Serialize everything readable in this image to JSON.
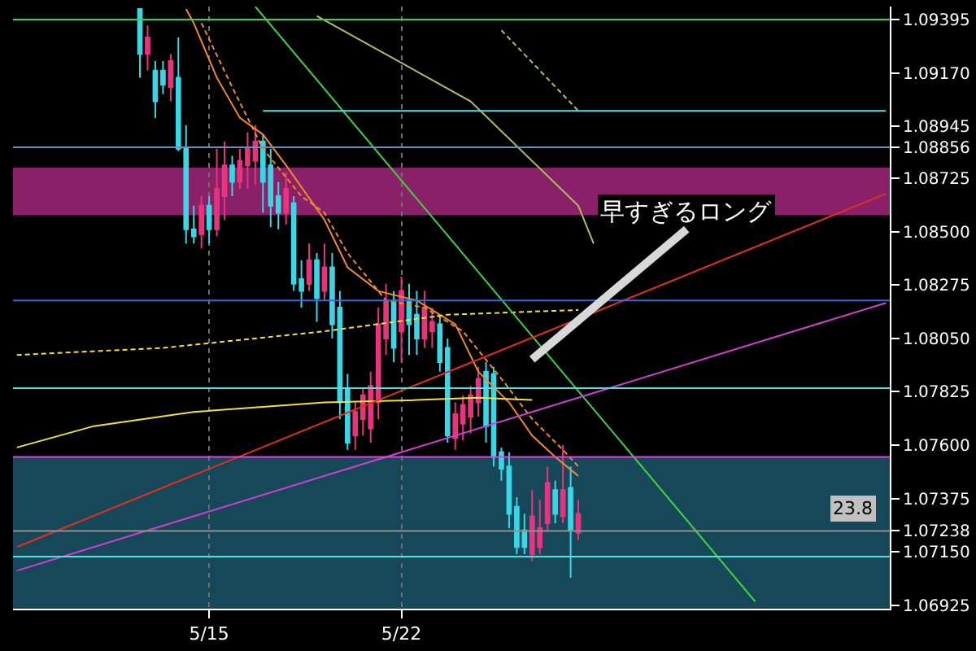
{
  "chart_data": {
    "type": "candlestick",
    "categories": [
      null,
      null,
      null,
      null,
      null,
      null,
      null,
      null,
      null,
      null,
      null,
      null,
      null,
      null,
      null,
      null,
      null,
      null,
      null,
      null,
      null,
      null,
      null,
      null,
      null,
      "5/15",
      null,
      null,
      null,
      null,
      null,
      null,
      null,
      null,
      null,
      null,
      null,
      null,
      null,
      null,
      null,
      null,
      null,
      null,
      null,
      null,
      null,
      null,
      null,
      null,
      "5/22",
      null,
      null,
      null,
      null,
      null,
      null,
      null,
      null,
      null,
      null,
      null,
      null,
      null,
      null,
      null,
      null,
      null,
      null,
      null,
      null,
      null,
      null,
      null,
      null,
      null,
      null,
      null,
      null,
      null,
      null,
      null,
      null,
      null,
      null,
      null,
      null,
      null,
      null,
      null,
      null,
      null,
      null,
      null,
      null,
      null,
      null,
      null,
      null,
      null,
      null,
      null,
      null,
      null,
      null,
      null,
      null,
      null,
      null,
      null,
      null,
      null,
      null,
      null
    ],
    "ohlc": [
      null,
      null,
      null,
      null,
      null,
      null,
      null,
      null,
      null,
      null,
      null,
      null,
      null,
      null,
      null,
      null,
      [
        1.0944,
        1.0944,
        1.0915,
        1.0925
      ],
      [
        1.0925,
        1.0937,
        1.0918,
        1.0932
      ],
      [
        1.0918,
        1.0922,
        1.0898,
        1.0905
      ],
      [
        1.0918,
        1.0922,
        1.0908,
        1.0912
      ],
      [
        1.0911,
        1.0925,
        1.0905,
        1.0922
      ],
      [
        1.0915,
        1.0932,
        1.0884,
        1.0885
      ],
      [
        1.0885,
        1.0895,
        1.0845,
        1.0851
      ],
      [
        1.0851,
        1.0861,
        1.0845,
        1.0848
      ],
      [
        1.0849,
        1.0865,
        1.0843,
        1.0861
      ],
      [
        1.0861,
        1.0865,
        1.0845,
        1.0851
      ],
      [
        1.0851,
        1.0885,
        1.0848,
        1.0868
      ],
      [
        1.0865,
        1.0888,
        1.0855,
        1.0878
      ],
      [
        1.0878,
        1.0882,
        1.0865,
        1.0871
      ],
      [
        1.0871,
        1.0885,
        1.0868,
        1.088
      ],
      [
        1.0878,
        1.0892,
        1.0868,
        1.0885
      ],
      [
        1.088,
        1.0895,
        1.087,
        1.0888
      ],
      [
        1.0888,
        1.0891,
        1.0858,
        1.0871
      ],
      [
        1.0878,
        1.0885,
        1.0852,
        1.0861
      ],
      [
        1.0865,
        1.0871,
        1.0851,
        1.0858
      ],
      [
        1.0858,
        1.0875,
        1.0853,
        1.0868
      ],
      [
        1.0862,
        1.0865,
        1.0825,
        1.0828
      ],
      [
        1.083,
        1.0838,
        1.0818,
        1.0825
      ],
      [
        1.0828,
        1.0845,
        1.0825,
        1.0838
      ],
      [
        1.0838,
        1.0841,
        1.0812,
        1.0822
      ],
      [
        1.0825,
        1.0845,
        1.0821,
        1.0835
      ],
      [
        1.0835,
        1.0841,
        1.0805,
        1.0811
      ],
      [
        1.0818,
        1.0825,
        1.0771,
        1.0778
      ],
      [
        1.0784,
        1.079,
        1.0758,
        1.0761
      ],
      [
        1.0764,
        1.0778,
        1.0758,
        1.0774
      ],
      [
        1.0771,
        1.0784,
        1.0764,
        1.0781
      ],
      [
        1.0767,
        1.0791,
        1.0761,
        1.0785
      ],
      [
        1.0778,
        1.0818,
        1.0771,
        1.0811
      ],
      [
        1.0805,
        1.0828,
        1.0798,
        1.0821
      ],
      [
        1.0821,
        1.0825,
        1.0795,
        1.0801
      ],
      [
        1.0808,
        1.0831,
        1.0795,
        1.0825
      ],
      [
        1.0821,
        1.0828,
        1.0798,
        1.0811
      ],
      [
        1.0815,
        1.0825,
        1.0798,
        1.0805
      ],
      [
        1.0805,
        1.0825,
        1.0801,
        1.0818
      ],
      [
        1.0808,
        1.0818,
        1.0801,
        1.0812
      ],
      [
        1.0811,
        1.0815,
        1.0791,
        1.0795
      ],
      [
        1.0801,
        1.0805,
        1.0761,
        1.0764
      ],
      [
        1.0763,
        1.0778,
        1.0758,
        1.0773
      ],
      [
        1.0769,
        1.0781,
        1.0762,
        1.0777
      ],
      [
        1.0772,
        1.0785,
        1.0765,
        1.0781
      ],
      [
        1.0778,
        1.0793,
        1.0772,
        1.0788
      ],
      [
        1.0791,
        1.0795,
        1.0761,
        1.0768
      ],
      [
        1.079,
        1.0793,
        1.0751,
        1.0755
      ],
      [
        1.0757,
        1.0759,
        1.0745,
        1.075
      ],
      [
        1.0751,
        1.0757,
        1.0725,
        1.0731
      ],
      [
        1.0734,
        1.0738,
        1.0714,
        1.0717
      ],
      [
        1.0724,
        1.0731,
        1.0714,
        1.0717
      ],
      [
        1.0714,
        1.0741,
        1.0711,
        1.073
      ],
      [
        1.0717,
        1.0737,
        1.0714,
        1.0725
      ],
      [
        1.0727,
        1.0751,
        1.0724,
        1.0744
      ],
      [
        1.0741,
        1.0745,
        1.0727,
        1.0731
      ],
      [
        1.073,
        1.076,
        1.0727,
        1.0741
      ],
      [
        1.0742,
        1.0751,
        1.0704,
        1.0724
      ],
      [
        1.0723,
        1.0737,
        1.072,
        1.0731
      ],
      null,
      null,
      null,
      null,
      null,
      null,
      null,
      null,
      null,
      null,
      null,
      null,
      null,
      null,
      null,
      null,
      null,
      null,
      null,
      null,
      null,
      null,
      null,
      null,
      null,
      null,
      null,
      null,
      null,
      null,
      null,
      null,
      null,
      null,
      null,
      null,
      null,
      null,
      null,
      null
    ],
    "colors": [
      null,
      null,
      null,
      null,
      null,
      null,
      null,
      null,
      null,
      null,
      null,
      null,
      null,
      null,
      null,
      null,
      "#3ad6e6",
      "#e8337f",
      "#3ad6e6",
      "#3ad6e6",
      "#e8337f",
      "#3ad6e6",
      "#3ad6e6",
      "#3ad6e6",
      "#e8337f",
      "#3ad6e6",
      "#e8337f",
      "#e8337f",
      "#3ad6e6",
      "#e8337f",
      "#e8337f",
      "#e8337f",
      "#3ad6e6",
      "#3ad6e6",
      "#3ad6e6",
      "#e8337f",
      "#3ad6e6",
      "#3ad6e6",
      "#e8337f",
      "#3ad6e6",
      "#e8337f",
      "#3ad6e6",
      "#3ad6e6",
      "#3ad6e6",
      "#e8337f",
      "#e8337f",
      "#e8337f",
      "#e8337f",
      "#e8337f",
      "#3ad6e6",
      "#e8337f",
      "#3ad6e6",
      "#3ad6e6",
      "#e8337f",
      "#e8337f",
      "#3ad6e6",
      "#3ad6e6",
      "#e8337f",
      "#e8337f",
      "#e8337f",
      "#e8337f",
      "#3ad6e6",
      "#3ad6e6",
      "#3ad6e6",
      "#3ad6e6",
      "#3ad6e6",
      "#3ad6e6",
      "#e8337f",
      "#e8337f",
      "#e8337f",
      "#3ad6e6",
      "#e8337f",
      "#3ad6e6",
      "#e8337f",
      null,
      null,
      null,
      null,
      null,
      null,
      null,
      null,
      null,
      null,
      null,
      null,
      null,
      null,
      null,
      null,
      null,
      null,
      null,
      null,
      null,
      null,
      null,
      null,
      null,
      null,
      null,
      null,
      null,
      null,
      null,
      null,
      null,
      null,
      null,
      null,
      null,
      null,
      null,
      null
    ],
    "series": [
      {
        "type": "line",
        "color": "#f08a30",
        "line_style": "solid",
        "values": [
          null,
          null,
          null,
          null,
          null,
          null,
          null,
          null,
          null,
          null,
          null,
          null,
          null,
          null,
          null,
          null,
          null,
          null,
          null,
          null,
          null,
          null,
          1.0944,
          1.0938,
          null,
          null,
          1.0915,
          null,
          null,
          1.0898,
          null,
          null,
          1.0891,
          null,
          null,
          1.0878,
          null,
          null,
          null,
          null,
          1.0855,
          null,
          null,
          1.0835,
          null,
          null,
          null,
          1.0825,
          null,
          null,
          null,
          null,
          1.0821,
          null,
          null,
          null,
          null,
          1.0811,
          null,
          null,
          1.0791,
          null,
          null,
          null,
          1.0778,
          null,
          null,
          1.0764,
          null,
          null,
          1.0755,
          null,
          null,
          1.0747,
          null,
          null,
          null,
          null,
          null,
          null,
          null,
          null,
          null,
          null,
          null,
          null,
          null,
          null,
          null,
          null,
          null,
          null,
          null,
          null,
          null,
          null,
          null,
          null,
          null,
          null,
          null,
          null,
          null,
          null,
          null,
          null,
          null,
          null,
          null,
          null,
          null,
          null,
          null,
          null
        ]
      },
      {
        "type": "line",
        "color": "#f08a30",
        "line_style": "dashed",
        "values": [
          null,
          null,
          null,
          null,
          null,
          null,
          null,
          null,
          null,
          null,
          null,
          null,
          null,
          null,
          null,
          null,
          null,
          null,
          null,
          null,
          null,
          null,
          null,
          null,
          1.0938,
          null,
          null,
          null,
          1.0911,
          null,
          null,
          null,
          1.0885,
          null,
          null,
          null,
          null,
          1.0865,
          null,
          null,
          1.0858,
          null,
          null,
          1.0841,
          null,
          null,
          null,
          null,
          1.0821,
          null,
          null,
          null,
          null,
          1.0818,
          null,
          null,
          null,
          null,
          1.0808,
          null,
          null,
          null,
          null,
          1.0788,
          null,
          null,
          null,
          1.0771,
          null,
          null,
          null,
          1.0758,
          null,
          1.0751,
          null,
          null,
          null,
          null,
          null,
          null,
          null,
          null,
          null,
          null,
          null,
          null,
          null,
          null,
          null,
          null,
          null,
          null,
          null,
          null,
          null,
          null,
          null,
          null,
          null,
          null,
          null,
          null,
          null,
          null,
          null,
          null,
          null,
          null,
          null,
          null,
          null,
          null,
          null,
          null
        ]
      },
      {
        "type": "line",
        "color": "#f0e040",
        "line_style": "solid",
        "values": [
          1.0759,
          null,
          null,
          null,
          null,
          null,
          null,
          null,
          null,
          null,
          1.0768,
          null,
          null,
          null,
          null,
          null,
          null,
          null,
          null,
          null,
          null,
          null,
          null,
          1.0774,
          null,
          null,
          null,
          null,
          null,
          null,
          null,
          null,
          null,
          null,
          null,
          null,
          null,
          null,
          null,
          null,
          1.0778,
          null,
          null,
          null,
          null,
          null,
          null,
          null,
          null,
          null,
          null,
          null,
          1.0779,
          null,
          null,
          null,
          null,
          null,
          null,
          null,
          1.078,
          null,
          null,
          null,
          null,
          null,
          null,
          1.0779,
          null,
          null,
          null,
          null,
          null,
          null,
          null,
          null,
          null,
          null,
          null,
          null,
          null,
          null,
          null,
          null,
          null,
          null,
          null,
          null,
          null,
          null,
          null,
          null,
          null,
          null,
          null,
          null,
          null,
          null,
          null,
          null,
          null,
          null,
          null,
          null,
          null,
          null,
          null,
          null,
          null,
          null,
          null,
          null,
          null,
          null
        ]
      },
      {
        "type": "line",
        "color": "#f0e040",
        "line_style": "dashed",
        "values": [
          1.0798,
          null,
          null,
          null,
          null,
          null,
          null,
          null,
          null,
          null,
          null,
          null,
          null,
          null,
          null,
          null,
          null,
          null,
          null,
          1.0801,
          null,
          null,
          null,
          null,
          null,
          null,
          null,
          null,
          null,
          null,
          null,
          null,
          null,
          null,
          null,
          null,
          null,
          null,
          null,
          null,
          1.0808,
          null,
          null,
          null,
          null,
          null,
          null,
          null,
          null,
          null,
          null,
          null,
          null,
          null,
          null,
          null,
          1.0815,
          null,
          null,
          null,
          null,
          null,
          null,
          null,
          null,
          null,
          null,
          null,
          null,
          null,
          null,
          null,
          null,
          1.0817,
          null,
          null,
          null,
          null,
          null,
          null,
          null,
          null,
          null,
          null,
          null,
          null,
          null,
          null,
          null,
          null,
          null,
          null,
          null,
          null,
          null,
          null,
          null,
          null,
          null,
          null,
          null,
          null,
          null,
          null,
          null,
          null,
          null,
          null,
          null,
          null,
          null,
          null,
          null,
          null
        ]
      },
      {
        "type": "line",
        "color": "#a8c060",
        "line_style": "solid",
        "values": [
          null,
          null,
          null,
          null,
          null,
          null,
          null,
          null,
          null,
          null,
          null,
          null,
          null,
          null,
          null,
          null,
          null,
          null,
          null,
          null,
          null,
          null,
          null,
          null,
          null,
          null,
          null,
          null,
          null,
          null,
          null,
          null,
          null,
          null,
          null,
          null,
          null,
          null,
          null,
          1.0941,
          null,
          null,
          null,
          null,
          null,
          null,
          null,
          null,
          null,
          null,
          null,
          null,
          null,
          null,
          null,
          null,
          null,
          null,
          null,
          1.0905,
          null,
          null,
          null,
          null,
          null,
          null,
          null,
          null,
          null,
          null,
          null,
          null,
          null,
          1.0861,
          null,
          1.0845,
          null,
          null,
          null,
          null,
          null,
          null,
          null,
          null,
          null,
          null,
          null,
          null,
          null,
          null,
          null,
          null,
          null,
          null,
          null,
          null,
          null,
          null,
          null,
          null,
          null,
          null,
          null,
          null,
          null,
          null,
          null,
          null,
          null,
          null,
          null,
          null,
          null,
          null
        ]
      },
      {
        "type": "line",
        "color": "#a8c060",
        "line_style": "dashed",
        "values": [
          null,
          null,
          null,
          null,
          null,
          null,
          null,
          null,
          null,
          null,
          null,
          null,
          null,
          null,
          null,
          null,
          null,
          null,
          null,
          null,
          null,
          null,
          null,
          null,
          null,
          null,
          null,
          null,
          null,
          null,
          null,
          null,
          null,
          null,
          null,
          null,
          null,
          null,
          null,
          null,
          null,
          null,
          null,
          null,
          null,
          null,
          null,
          null,
          null,
          null,
          null,
          null,
          null,
          null,
          null,
          null,
          null,
          null,
          null,
          null,
          null,
          null,
          null,
          1.0935,
          null,
          null,
          null,
          null,
          null,
          null,
          null,
          null,
          null,
          1.0901,
          null,
          null,
          null,
          null,
          null,
          null,
          null,
          null,
          null,
          null,
          null,
          null,
          null,
          null,
          null,
          null,
          null,
          null,
          null,
          null,
          null,
          null,
          null,
          null,
          null,
          null,
          null,
          null,
          null,
          null,
          null,
          null,
          null,
          null,
          null,
          null,
          null,
          null,
          null,
          null
        ]
      },
      {
        "type": "line",
        "color": "#40d040",
        "line_style": "solid",
        "values": [
          null,
          null,
          null,
          null,
          null,
          null,
          null,
          null,
          null,
          null,
          null,
          null,
          null,
          null,
          null,
          null,
          null,
          null,
          null,
          null,
          null,
          null,
          null,
          null,
          null,
          null,
          null,
          null,
          null,
          null,
          null,
          1.0945,
          null,
          null,
          null,
          null,
          null,
          null,
          null,
          null,
          null,
          null,
          null,
          null,
          null,
          null,
          null,
          null,
          null,
          null,
          null,
          null,
          null,
          null,
          null,
          null,
          null,
          null,
          null,
          null,
          null,
          null,
          null,
          null,
          null,
          null,
          null,
          null,
          null,
          null,
          null,
          null,
          null,
          null,
          null,
          null,
          null,
          null,
          null,
          null,
          null,
          null,
          null,
          null,
          null,
          null,
          null,
          null,
          null,
          null,
          null,
          null,
          null,
          null,
          null,
          null,
          1.0694,
          null,
          null,
          null,
          null,
          null,
          null,
          null,
          null,
          null,
          null,
          null,
          null,
          null,
          null,
          null,
          null,
          null
        ]
      },
      {
        "type": "line",
        "color": "#e03020",
        "line_style": "solid",
        "values": [
          1.0717,
          null,
          null,
          null,
          null,
          null,
          null,
          null,
          null,
          null,
          null,
          null,
          null,
          null,
          null,
          null,
          null,
          null,
          null,
          null,
          null,
          null,
          null,
          null,
          null,
          null,
          null,
          null,
          null,
          null,
          null,
          null,
          null,
          null,
          null,
          null,
          null,
          null,
          null,
          null,
          null,
          null,
          null,
          null,
          null,
          null,
          null,
          null,
          null,
          null,
          null,
          null,
          null,
          null,
          null,
          null,
          null,
          null,
          null,
          null,
          null,
          null,
          null,
          null,
          null,
          null,
          null,
          null,
          null,
          null,
          null,
          null,
          null,
          null,
          null,
          null,
          null,
          null,
          null,
          null,
          null,
          null,
          null,
          null,
          null,
          null,
          null,
          null,
          null,
          null,
          null,
          null,
          null,
          null,
          null,
          null,
          null,
          null,
          null,
          null,
          null,
          null,
          null,
          null,
          null,
          null,
          null,
          null,
          null,
          null,
          null,
          null,
          null,
          1.0866
        ]
      },
      {
        "type": "line",
        "color": "#d040d0",
        "line_style": "solid",
        "values": [
          1.0707,
          null,
          null,
          null,
          null,
          null,
          null,
          null,
          null,
          null,
          null,
          null,
          null,
          null,
          null,
          null,
          null,
          null,
          null,
          null,
          null,
          null,
          null,
          null,
          null,
          null,
          null,
          null,
          null,
          null,
          null,
          null,
          null,
          null,
          null,
          null,
          null,
          null,
          null,
          null,
          null,
          null,
          null,
          null,
          null,
          null,
          null,
          null,
          null,
          null,
          null,
          null,
          null,
          null,
          null,
          null,
          null,
          null,
          null,
          null,
          null,
          null,
          null,
          null,
          null,
          null,
          null,
          null,
          null,
          null,
          null,
          null,
          null,
          null,
          null,
          null,
          null,
          null,
          null,
          null,
          null,
          null,
          null,
          null,
          null,
          null,
          null,
          null,
          null,
          null,
          null,
          null,
          null,
          null,
          null,
          null,
          null,
          null,
          null,
          null,
          null,
          null,
          null,
          null,
          null,
          null,
          null,
          null,
          null,
          null,
          null,
          null,
          null,
          1.082
        ]
      },
      {
        "type": "line",
        "color": "#50e0e0",
        "line_style": "solid",
        "values": [
          null,
          null,
          null,
          null,
          null,
          null,
          null,
          null,
          null,
          null,
          null,
          null,
          null,
          null,
          null,
          null,
          null,
          null,
          null,
          null,
          null,
          null,
          null,
          null,
          null,
          null,
          null,
          null,
          null,
          null,
          null,
          null,
          1.0901,
          null,
          null,
          null,
          null,
          null,
          null,
          null,
          null,
          null,
          null,
          null,
          null,
          null,
          null,
          null,
          null,
          null,
          null,
          null,
          null,
          null,
          null,
          null,
          null,
          null,
          null,
          null,
          null,
          null,
          null,
          null,
          null,
          null,
          null,
          null,
          null,
          null,
          null,
          null,
          null,
          null,
          null,
          null,
          null,
          null,
          null,
          null,
          null,
          null,
          null,
          null,
          null,
          null,
          null,
          null,
          null,
          null,
          null,
          null,
          null,
          null,
          null,
          null,
          null,
          null,
          null,
          null,
          null,
          null,
          null,
          null,
          null,
          null,
          null,
          null,
          null,
          null,
          null,
          null,
          null,
          1.0901
        ]
      }
    ],
    "ref_lines": [
      {
        "axis": "y",
        "value": 1.09395,
        "color": "#40d040"
      },
      {
        "axis": "y",
        "value": 1.08856,
        "color": "#6a8fc0"
      },
      {
        "axis": "y",
        "value": 1.0821,
        "color": "#3a6ae0"
      },
      {
        "axis": "y",
        "value": 1.0784,
        "color": "#50e0e0"
      },
      {
        "axis": "y",
        "value": 1.0755,
        "color": "#e040e0"
      },
      {
        "axis": "y",
        "value": 1.07238,
        "color": "#909090"
      },
      {
        "axis": "y",
        "value": 1.0713,
        "color": "#50e0e0"
      }
    ],
    "bands": [
      {
        "axis": "y",
        "from": 1.0857,
        "to": 1.0877,
        "color": "#8a2068"
      },
      {
        "axis": "y",
        "from": 1.0691,
        "to": 1.0755,
        "color": "#17485a"
      }
    ],
    "annotations": [
      "早すぎるロング",
      "23.8"
    ],
    "ylim": [
      1.0691,
      1.0945
    ],
    "yticks": [
      {
        "value": 1.09395,
        "label": "1.09395"
      },
      {
        "value": 1.0917,
        "label": "1.09170"
      },
      {
        "value": 1.08945,
        "label": "1.08945"
      },
      {
        "value": 1.08856,
        "label": "1.08856"
      },
      {
        "value": 1.08725,
        "label": "1.08725"
      },
      {
        "value": 1.085,
        "label": "1.08500"
      },
      {
        "value": 1.08275,
        "label": "1.08275"
      },
      {
        "value": 1.0805,
        "label": "1.08050"
      },
      {
        "value": 1.07825,
        "label": "1.07825"
      },
      {
        "value": 1.076,
        "label": "1.07600"
      },
      {
        "value": 1.07375,
        "label": "1.07375"
      },
      {
        "value": 1.07238,
        "label": "1.07238"
      },
      {
        "value": 1.0715,
        "label": "1.07150"
      },
      {
        "value": 1.06925,
        "label": "1.06925"
      }
    ],
    "grid": "x"
  }
}
